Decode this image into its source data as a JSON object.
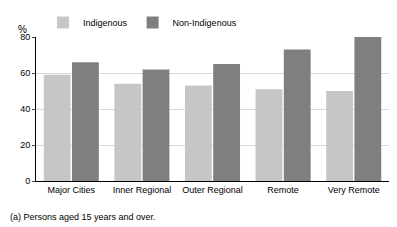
{
  "chart_data": {
    "type": "bar",
    "ylabel": "%",
    "categories": [
      "Major Cities",
      "Inner Regional",
      "Outer Regional",
      "Remote",
      "Very Remote"
    ],
    "series": [
      {
        "name": "Indigenous",
        "color": "#c6c6c6",
        "values": [
          59,
          54,
          53,
          51,
          50
        ]
      },
      {
        "name": "Non-Indigenous",
        "color": "#7f7f7f",
        "values": [
          66,
          62,
          65,
          73,
          80
        ]
      }
    ],
    "ylim": [
      0,
      80
    ],
    "yticks": [
      0,
      20,
      40,
      60,
      80
    ],
    "grid": true,
    "legend": "top",
    "annotations": [
      "(a) Persons aged 15 years and over."
    ]
  }
}
